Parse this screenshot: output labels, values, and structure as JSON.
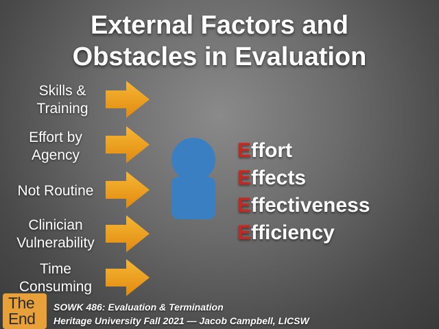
{
  "slide": {
    "title_line1": "External Factors and",
    "title_line2": "Obstacles in Evaluation",
    "factors": [
      {
        "line1": "Skills &",
        "line2": "Training"
      },
      {
        "line1": "Effort by",
        "line2": "Agency"
      },
      {
        "line1": "Not Routine",
        "line2": ""
      },
      {
        "line1": "Clinician",
        "line2": "Vulnerability"
      },
      {
        "line1": "Time",
        "line2": "Consuming"
      }
    ],
    "e_words": [
      {
        "first": "E",
        "rest": "ffort"
      },
      {
        "first": "E",
        "rest": "ffects"
      },
      {
        "first": "E",
        "rest": "ffectiveness"
      },
      {
        "first": "E",
        "rest": "fficiency"
      }
    ],
    "logo_line1": "The",
    "logo_line2": "End",
    "footer_line1": "SOWK 486: Evaluation & Termination",
    "footer_line2": "Heritage University Fall 2021 — Jacob Campbell, LICSW"
  },
  "colors": {
    "arrow": "#f0a020",
    "person": "#3a7fc1",
    "e_accent": "#c8261e",
    "logo": "#e8a13a"
  },
  "icons": {
    "arrows": "right-arrow-icon",
    "person": "person-icon"
  }
}
